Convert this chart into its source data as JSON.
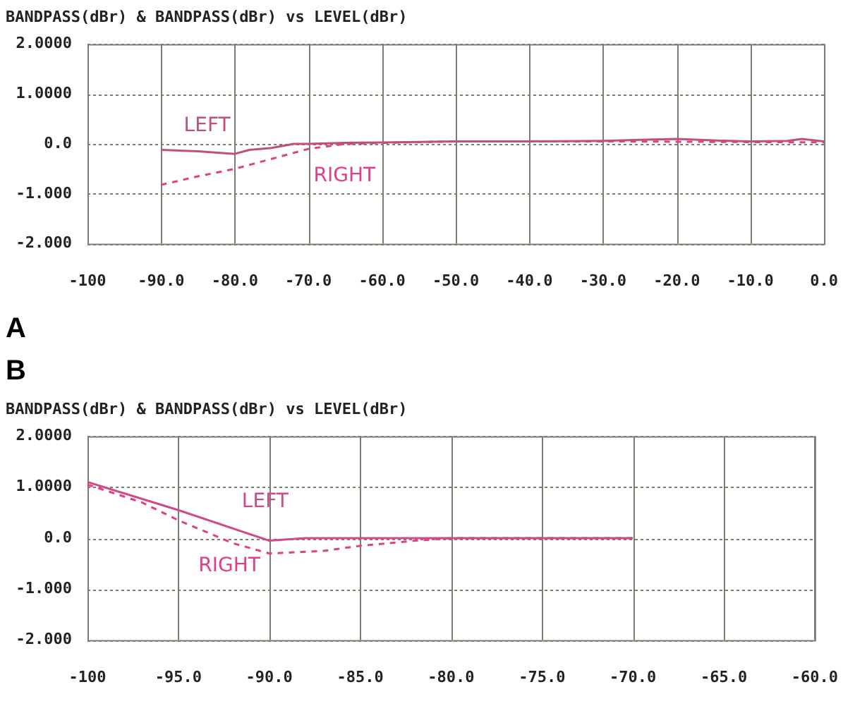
{
  "chart_data": [
    {
      "type": "line",
      "title": "BANDPASS(dBr) & BANDPASS(dBr) vs LEVEL(dBr)",
      "annotations": [
        "A"
      ],
      "xlim": [
        -100,
        0
      ],
      "xticks": [
        {
          "value": -100,
          "label": "-100"
        },
        {
          "value": -90,
          "label": "-90.0"
        },
        {
          "value": -80,
          "label": "-80.0"
        },
        {
          "value": -70,
          "label": "-70.0"
        },
        {
          "value": -60,
          "label": "-60.0"
        },
        {
          "value": -50,
          "label": "-50.0"
        },
        {
          "value": -40,
          "label": "-40.0"
        },
        {
          "value": -30,
          "label": "-30.0"
        },
        {
          "value": -20,
          "label": "-20.0"
        },
        {
          "value": -10,
          "label": "-10.0"
        },
        {
          "value": 0,
          "label": "0.0"
        }
      ],
      "ylim": [
        -2,
        2
      ],
      "yticks": [
        {
          "value": -2,
          "label": "-2.000"
        },
        {
          "value": -1,
          "label": "-1.000"
        },
        {
          "value": 0,
          "label": "0.0"
        },
        {
          "value": 1,
          "label": "1.0000"
        },
        {
          "value": 2,
          "label": "2.0000"
        }
      ],
      "grid": true,
      "legend": false,
      "marker": "none",
      "series": [
        {
          "name": "LEFT",
          "color": "#c0507a",
          "line_style": "solid",
          "x": [
            -90,
            -85,
            -80,
            -78,
            -75,
            -72,
            -70,
            -65,
            -60,
            -50,
            -40,
            -30,
            -25,
            -20,
            -15,
            -10,
            -5,
            -3,
            0
          ],
          "values": [
            -0.12,
            -0.15,
            -0.2,
            -0.12,
            -0.08,
            0,
            0,
            0.02,
            0.03,
            0.05,
            0.05,
            0.06,
            0.08,
            0.1,
            0.07,
            0.05,
            0.06,
            0.1,
            0.05
          ]
        },
        {
          "name": "RIGHT",
          "color": "#e0408a",
          "line_style": "dashed",
          "x": [
            -90,
            -85,
            -80,
            -75,
            -70,
            -65,
            -60,
            -50,
            -30,
            0
          ],
          "values": [
            -0.82,
            -0.65,
            -0.5,
            -0.3,
            -0.1,
            0,
            0.02,
            0.05,
            0.05,
            0.03
          ]
        }
      ]
    },
    {
      "type": "line",
      "title": "BANDPASS(dBr) & BANDPASS(dBr) vs LEVEL(dBr)",
      "annotations": [
        "B"
      ],
      "xlim": [
        -100,
        -60
      ],
      "xticks": [
        {
          "value": -100,
          "label": "-100"
        },
        {
          "value": -95,
          "label": "-95.0"
        },
        {
          "value": -90,
          "label": "-90.0"
        },
        {
          "value": -85,
          "label": "-85.0"
        },
        {
          "value": -80,
          "label": "-80.0"
        },
        {
          "value": -75,
          "label": "-75.0"
        },
        {
          "value": -70,
          "label": "-70.0"
        },
        {
          "value": -65,
          "label": "-65.0"
        },
        {
          "value": -60,
          "label": "-60.0"
        }
      ],
      "ylim": [
        -2,
        2
      ],
      "yticks": [
        {
          "value": -2,
          "label": "-2.000"
        },
        {
          "value": -1,
          "label": "-1.000"
        },
        {
          "value": 0,
          "label": "0.0"
        },
        {
          "value": 1,
          "label": "1.0000"
        },
        {
          "value": 2,
          "label": "2.0000"
        }
      ],
      "grid": true,
      "legend": false,
      "marker": "none",
      "series": [
        {
          "name": "LEFT",
          "color": "#d04a88",
          "line_style": "solid",
          "x": [
            -100,
            -95,
            -90,
            -88,
            -80,
            -70
          ],
          "values": [
            1.1,
            0.55,
            -0.05,
            0,
            0,
            0
          ]
        },
        {
          "name": "RIGHT",
          "color": "#e0408a",
          "line_style": "dashed",
          "x": [
            -100,
            -97,
            -95,
            -92,
            -90,
            -87,
            -85,
            -82,
            -80,
            -70
          ],
          "values": [
            1.05,
            0.7,
            0.35,
            -0.1,
            -0.3,
            -0.25,
            -0.15,
            -0.05,
            0,
            0
          ]
        }
      ]
    }
  ]
}
